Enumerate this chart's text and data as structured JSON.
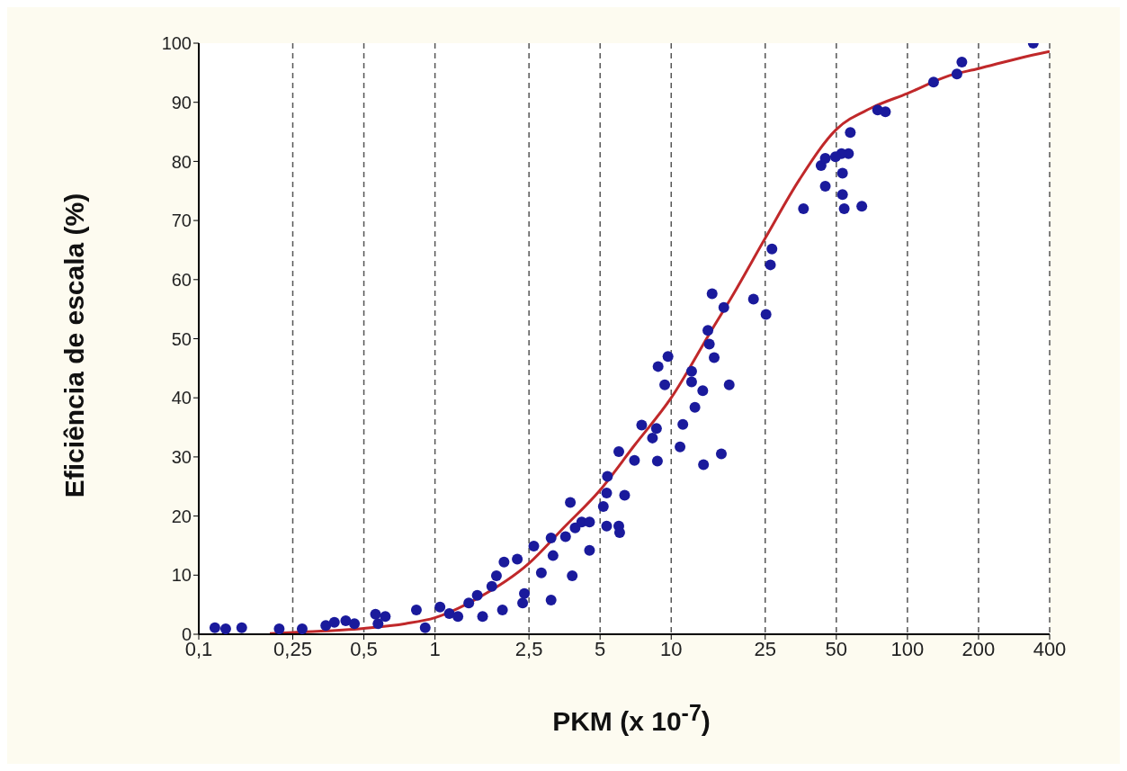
{
  "chart_data": {
    "type": "scatter",
    "xlabel": "PKM  (x  10$^{-7}$)",
    "ylabel": "Eficiência de escala (%)",
    "log": "x",
    "grid": "x",
    "xlim": [
      0.1,
      400
    ],
    "ylim": [
      0,
      100
    ],
    "xticks": [
      {
        "value": 0.1,
        "label": "0,1"
      },
      {
        "value": 0.25,
        "label": "0,25"
      },
      {
        "value": 0.5,
        "label": "0,5"
      },
      1,
      {
        "value": 2.5,
        "label": "2,5"
      },
      5,
      10,
      25,
      50,
      100,
      200,
      400
    ],
    "yticks": [
      0,
      10,
      20,
      30,
      40,
      50,
      60,
      70,
      80,
      90,
      100
    ],
    "series": [
      {
        "color": "#1a1a9c",
        "marker": "circle",
        "x": [
          0.117,
          0.13,
          0.152,
          0.219,
          0.274,
          0.345,
          0.375,
          0.419,
          0.456,
          0.56,
          0.616,
          0.574,
          0.834,
          0.909,
          1.05,
          1.15,
          1.25,
          1.39,
          1.51,
          1.59,
          1.74,
          1.82,
          1.93,
          1.96,
          2.23,
          2.39,
          2.35,
          2.62,
          2.82,
          3.1,
          3.16,
          3.1,
          3.81,
          3.74,
          3.57,
          3.92,
          4.18,
          4.51,
          4.51,
          5.16,
          5.33,
          5.37,
          5.33,
          6.0,
          6.05,
          6.35,
          6.0,
          6.99,
          7.5,
          8.33,
          8.66,
          8.74,
          10.9,
          11.2,
          13.7,
          16.3,
          14.9,
          16.7,
          22.3,
          25.2,
          14.3,
          14.5,
          15.2,
          9.69,
          8.8,
          9.39,
          12.2,
          12.2,
          13.6,
          17.6,
          12.6,
          341,
          170,
          162,
          129,
          74.8,
          80.7,
          57.3,
          56.3,
          52.6,
          49.6,
          43.1,
          44.9,
          53.1,
          44.9,
          53.1,
          54,
          64.1,
          36.3,
          26.7,
          26.3
        ],
        "values": [
          1.1,
          0.9,
          1.1,
          0.9,
          0.9,
          1.5,
          2.0,
          2.3,
          1.8,
          3.4,
          3.0,
          1.8,
          4.1,
          1.1,
          4.6,
          3.5,
          3.0,
          5.3,
          6.6,
          3.0,
          8.1,
          9.9,
          4.1,
          12.2,
          12.7,
          6.9,
          5.3,
          14.9,
          10.4,
          5.8,
          13.3,
          16.3,
          9.9,
          22.3,
          16.5,
          18,
          19,
          19,
          14.2,
          21.6,
          23.9,
          26.7,
          18.3,
          18.3,
          17.2,
          23.5,
          30.9,
          29.4,
          35.4,
          33.2,
          34.8,
          29.3,
          31.7,
          35.5,
          28.7,
          30.5,
          57.6,
          55.3,
          56.7,
          54.1,
          51.4,
          49.1,
          46.8,
          47,
          45.3,
          42.2,
          44.5,
          42.7,
          41.2,
          42.2,
          38.4,
          100,
          96.8,
          94.8,
          93.4,
          88.7,
          88.4,
          84.9,
          81.3,
          81.3,
          80.8,
          79.3,
          80.5,
          78,
          75.8,
          74.4,
          72,
          72.4,
          72,
          65.2,
          62.5
        ]
      },
      {
        "type": "line",
        "color": "#c0282a",
        "marker": "none",
        "line_style": "solid",
        "x": [
          0.2,
          0.25,
          0.5,
          0.75,
          1,
          1.5,
          2.5,
          3.5,
          5,
          7,
          10,
          15,
          18,
          25,
          35,
          50,
          70,
          100,
          150,
          200,
          300,
          400
        ],
        "values": [
          0.1,
          0.3,
          1,
          1.8,
          2.8,
          6,
          12,
          18,
          24.4,
          32,
          40,
          51.8,
          57,
          67,
          77,
          85.4,
          89,
          91.5,
          94.5,
          95.7,
          97.5,
          98.6
        ]
      }
    ]
  }
}
